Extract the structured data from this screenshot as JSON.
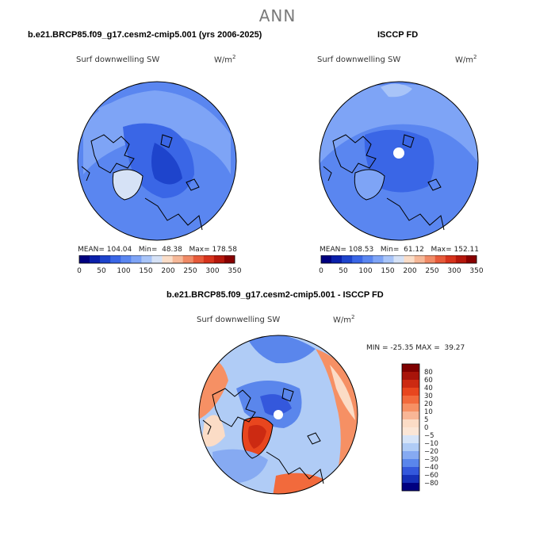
{
  "page_title": "ANN",
  "units": {
    "base": "W/m",
    "exp": "2"
  },
  "chart_data": [
    {
      "type": "heatmap",
      "projection": "north polar stereographic",
      "title": "b.e21.BRCP85.f09_g17.cesm2-cmip5.001 (yrs 2006-2025)",
      "variable": "Surf downwelling SW",
      "stats": {
        "mean_label": "MEAN=",
        "mean": "104.04",
        "min_label": "Min=",
        "min": "48.38",
        "max_label": "Max=",
        "max": "178.58"
      },
      "colorbar": {
        "orientation": "horizontal",
        "levels": [
          0,
          25,
          50,
          75,
          100,
          125,
          150,
          175,
          200,
          225,
          250,
          275,
          300,
          325,
          350
        ],
        "tick_labels": [
          "0",
          "50",
          "100",
          "150",
          "200",
          "250",
          "300",
          "350"
        ],
        "colors": [
          "#00007f",
          "#0a1faa",
          "#1e44cc",
          "#3a66e6",
          "#5a86f0",
          "#7ea4f6",
          "#a8c4f8",
          "#d6e2f6",
          "#faddc8",
          "#f6b898",
          "#f08a66",
          "#e75a3a",
          "#d6331c",
          "#b5170c",
          "#880000"
        ]
      }
    },
    {
      "type": "heatmap",
      "projection": "north polar stereographic",
      "title": "ISCCP FD",
      "variable": "Surf downwelling SW",
      "stats": {
        "mean_label": "MEAN=",
        "mean": "108.53",
        "min_label": "Min=",
        "min": "61.12",
        "max_label": "Max=",
        "max": "152.11"
      },
      "colorbar": {
        "orientation": "horizontal",
        "levels": [
          0,
          25,
          50,
          75,
          100,
          125,
          150,
          175,
          200,
          225,
          250,
          275,
          300,
          325,
          350
        ],
        "tick_labels": [
          "0",
          "50",
          "100",
          "150",
          "200",
          "250",
          "300",
          "350"
        ],
        "colors": [
          "#00007f",
          "#0a1faa",
          "#1e44cc",
          "#3a66e6",
          "#5a86f0",
          "#7ea4f6",
          "#a8c4f8",
          "#d6e2f6",
          "#faddc8",
          "#f6b898",
          "#f08a66",
          "#e75a3a",
          "#d6331c",
          "#b5170c",
          "#880000"
        ]
      }
    },
    {
      "type": "heatmap",
      "projection": "north polar stereographic",
      "title": "b.e21.BRCP85.f09_g17.cesm2-cmip5.001 - ISCCP FD",
      "variable": "Surf downwelling SW",
      "stats_text": "MIN = -25.35 MAX =  39.27",
      "stats": {
        "min": -25.35,
        "max": 39.27
      },
      "colorbar": {
        "orientation": "vertical",
        "tick_labels": [
          "80",
          "60",
          "40",
          "30",
          "20",
          "10",
          "5",
          "0",
          "−5",
          "−10",
          "−20",
          "−30",
          "−40",
          "−60",
          "−80"
        ],
        "colors": [
          "#7f0000",
          "#a8140a",
          "#cc2a12",
          "#e8461e",
          "#f26a3c",
          "#f69064",
          "#f8b696",
          "#fbdcc6",
          "#fbe6d6",
          "#d6e4f8",
          "#b0ccf6",
          "#86aaf2",
          "#5a86ec",
          "#3458dc",
          "#1630b8",
          "#000080"
        ]
      }
    }
  ]
}
